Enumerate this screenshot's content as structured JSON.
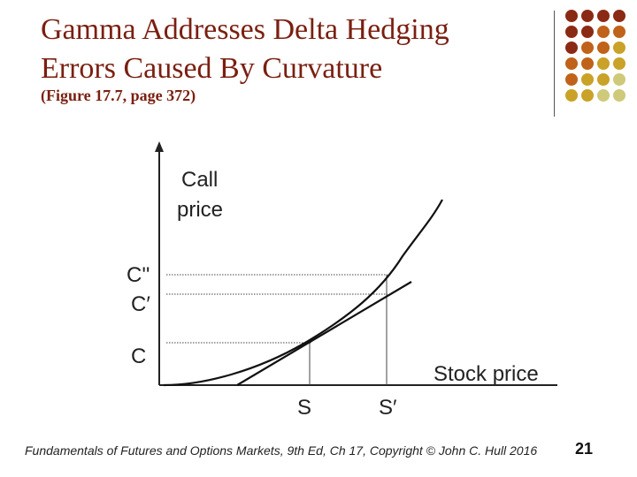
{
  "title": {
    "line1": "Gamma Addresses Delta Hedging",
    "line2": "Errors Caused By Curvature"
  },
  "subtitle": "(Figure 17.7, page 372)",
  "diagram": {
    "y_axis_label_line1": "Call",
    "y_axis_label_line2": "price",
    "x_axis_label": "Stock price",
    "y_marks": [
      "C''",
      "C′",
      "C"
    ],
    "x_marks": [
      "S",
      "S′"
    ]
  },
  "footer": "Fundamentals of Futures and Options Markets, 9th Ed, Ch 17, Copyright © John C. Hull 2016",
  "page_number": "21",
  "colors": {
    "title": "#7a1f10",
    "dot_dark": "#8b2a14",
    "dot_mid": "#c0621a",
    "dot_gold": "#c9a227",
    "dot_light": "#cfc97a"
  }
}
